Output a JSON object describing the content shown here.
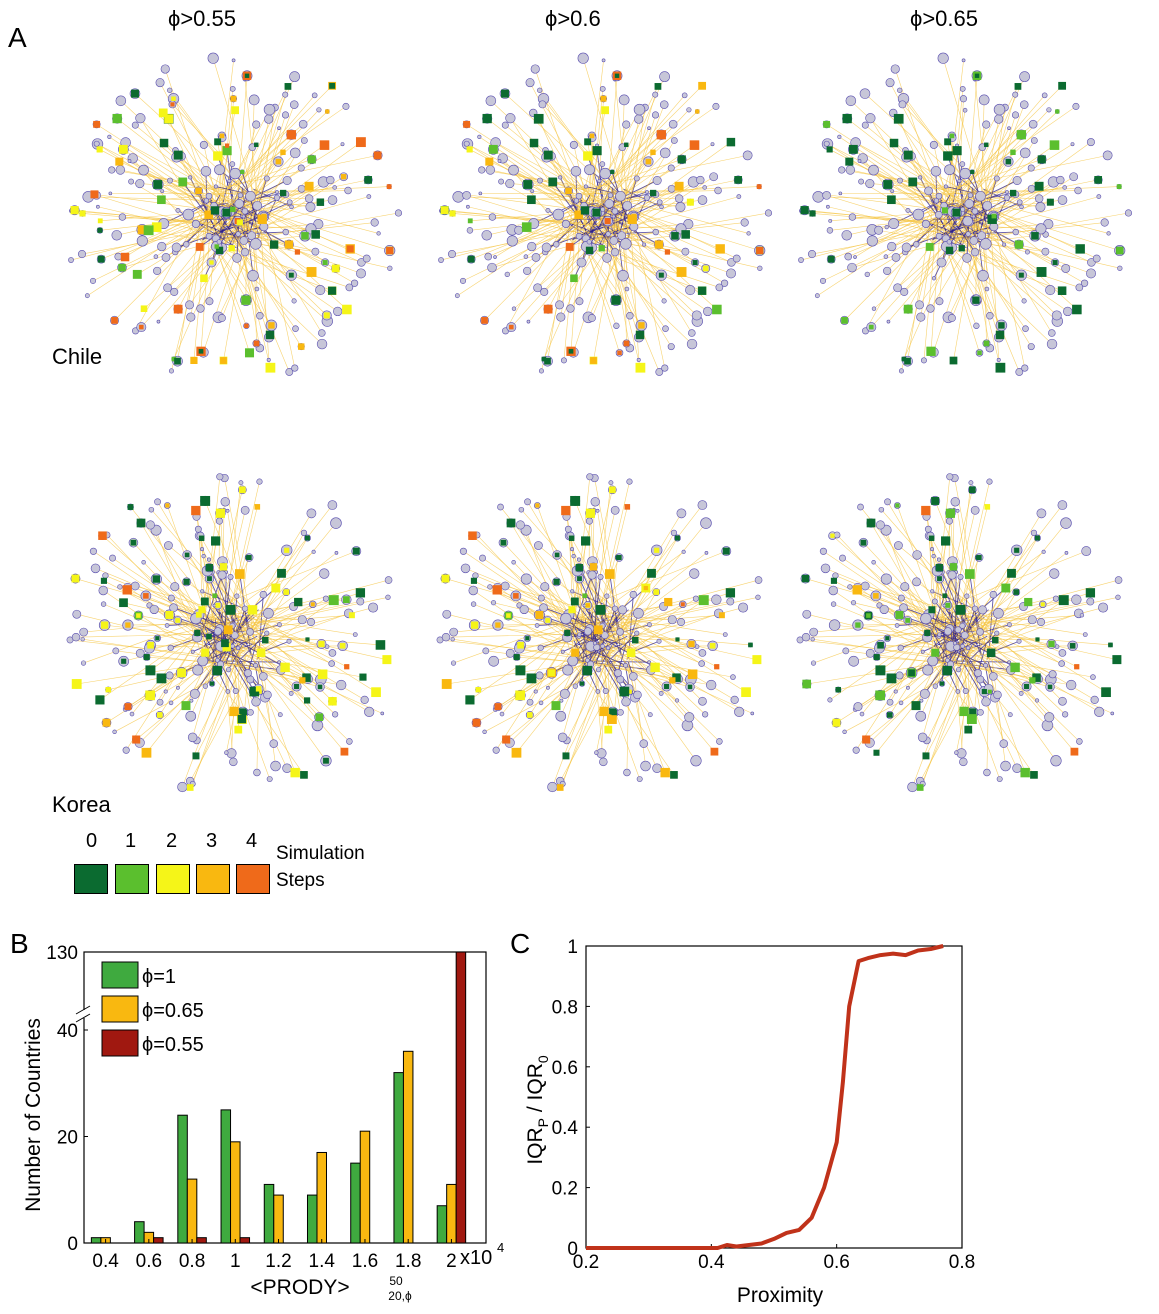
{
  "panel_labels": {
    "a": "A",
    "b": "B",
    "c": "C"
  },
  "panel_a": {
    "column_titles": [
      "ϕ>0.55",
      "ϕ>0.6",
      "ϕ>0.65"
    ],
    "row_labels": [
      "Chile",
      "Korea"
    ],
    "legend": {
      "steps": [
        "0",
        "1",
        "2",
        "3",
        "4"
      ],
      "colors": [
        "#0b6b30",
        "#5bbf2e",
        "#f5f518",
        "#f9b810",
        "#ef6a1a"
      ],
      "label_line1": "Simulation",
      "label_line2": "Steps"
    },
    "node_color": "#c7c6d8",
    "link_colors": {
      "sparse": "#f5c542",
      "dense": "#2b1f8f"
    }
  },
  "chart_data": [
    {
      "type": "bar",
      "panel": "B",
      "ylabel": "Number of Countries",
      "xlabel": "<PRODY>",
      "xlabel_subscript": "20,ϕ",
      "xlabel_superscript": "50",
      "x_multiplier": "x10",
      "x_multiplier_exp": "4",
      "x": [
        0.4,
        0.6,
        0.8,
        1.0,
        1.2,
        1.4,
        1.6,
        1.8,
        2.0
      ],
      "xlim": [
        0.3,
        2.16
      ],
      "xticks": [
        "0.4",
        "0.6",
        "0.8",
        "1",
        "1.2",
        "1.4",
        "1.6",
        "1.8",
        "2"
      ],
      "yticks": [
        "0",
        "20",
        "40",
        "130"
      ],
      "y_axis_break": "between 40 and 130",
      "series": [
        {
          "name": "ϕ=1",
          "color": "#3faa3f",
          "values": [
            1,
            4,
            24,
            25,
            11,
            9,
            15,
            32,
            7
          ]
        },
        {
          "name": "ϕ=0.65",
          "color": "#f9b810",
          "values": [
            1,
            2,
            12,
            19,
            9,
            17,
            21,
            36,
            11
          ]
        },
        {
          "name": "ϕ=0.55",
          "color": "#a01810",
          "values": [
            0,
            1,
            1,
            1,
            0,
            0,
            0,
            0,
            130
          ]
        }
      ],
      "legend_position": "top-left"
    },
    {
      "type": "line",
      "panel": "C",
      "xlabel": "Proximity",
      "ylabel": "IQR_P / IQR_0",
      "xlim": [
        0.2,
        0.8
      ],
      "ylim": [
        0,
        1
      ],
      "xticks": [
        "0.2",
        "0.4",
        "0.6",
        "0.8"
      ],
      "yticks": [
        "0",
        "0.2",
        "0.4",
        "0.6",
        "0.8",
        "1"
      ],
      "series": [
        {
          "color": "#c0321a",
          "x": [
            0.2,
            0.3,
            0.41,
            0.425,
            0.44,
            0.46,
            0.48,
            0.5,
            0.52,
            0.54,
            0.56,
            0.58,
            0.6,
            0.61,
            0.62,
            0.635,
            0.65,
            0.67,
            0.69,
            0.71,
            0.73,
            0.75,
            0.77
          ],
          "y": [
            0,
            0,
            0,
            0.01,
            0.005,
            0.01,
            0.015,
            0.03,
            0.05,
            0.06,
            0.1,
            0.2,
            0.35,
            0.55,
            0.8,
            0.95,
            0.96,
            0.97,
            0.975,
            0.97,
            0.985,
            0.99,
            1.0
          ]
        }
      ]
    }
  ]
}
